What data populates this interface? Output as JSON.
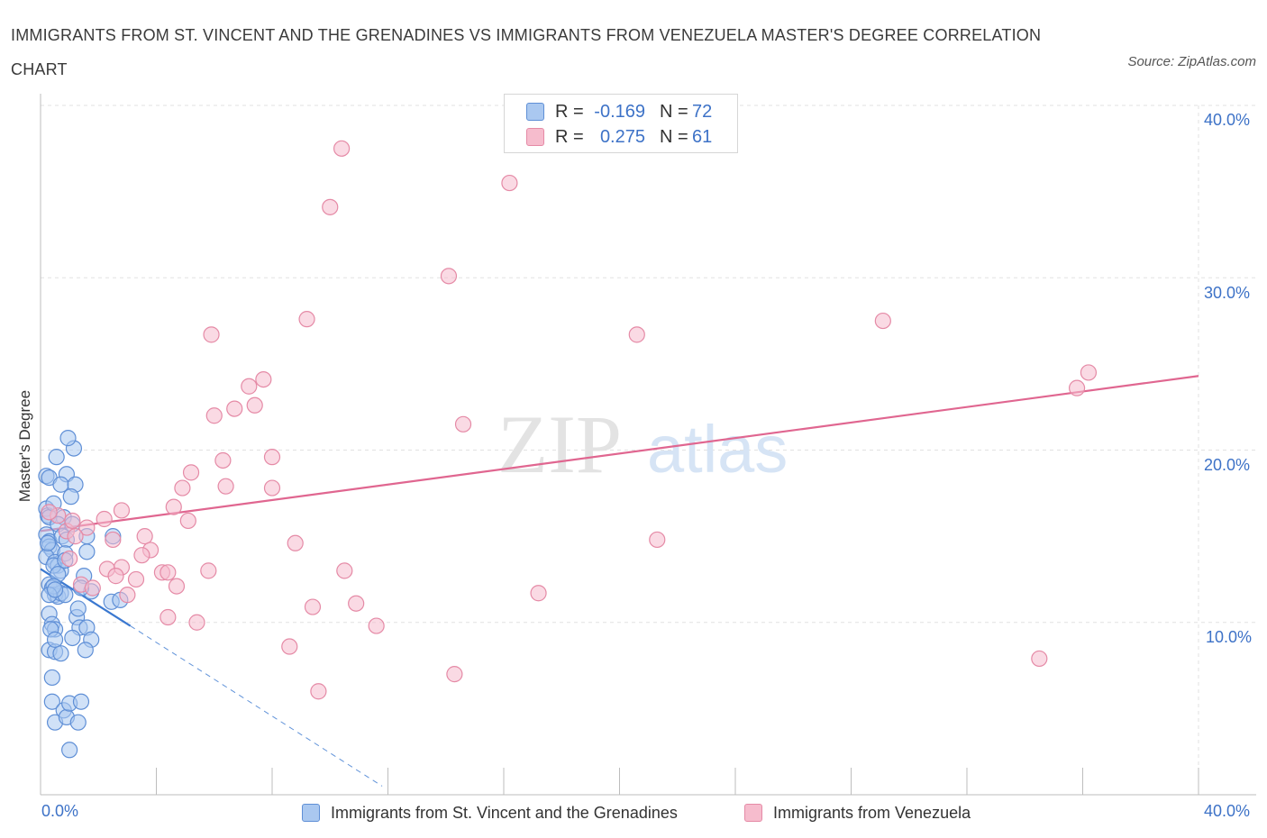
{
  "title": "IMMIGRANTS FROM ST. VINCENT AND THE GRENADINES VS IMMIGRANTS FROM VENEZUELA MASTER'S DEGREE CORRELATION CHART",
  "source": "Source: ZipAtlas.com",
  "watermark": {
    "zip": "ZIP",
    "atlas": "atlas"
  },
  "colors": {
    "blue_fill": "#aac8f0",
    "blue_stroke": "#5f8fd6",
    "blue_line": "#3a78d0",
    "pink_fill": "#f6bccd",
    "pink_stroke": "#e58aa6",
    "pink_line": "#e06690",
    "accent_text": "#3d72c7",
    "grid": "#e2e2e2"
  },
  "legend": {
    "blue": {
      "r_label": "R =",
      "r_value": "-0.169",
      "n_label": "N =",
      "n_value": "72"
    },
    "pink": {
      "r_label": "R =",
      "r_value": "0.275",
      "n_label": "N =",
      "n_value": "61"
    }
  },
  "bottom_legend": {
    "blue": "Immigrants from St. Vincent and the Grenadines",
    "pink": "Immigrants from Venezuela"
  },
  "chart_data": {
    "type": "scatter",
    "ylabel": "Master's Degree",
    "x_tick_labels": {
      "left": "0.0%",
      "right": "40.0%"
    },
    "y_tick_labels": [
      "10.0%",
      "20.0%",
      "30.0%",
      "40.0%"
    ],
    "xlim": [
      0,
      40
    ],
    "ylim": [
      0,
      40
    ],
    "y_ticks": [
      10,
      20,
      30,
      40
    ],
    "grid": true,
    "legend_position": "top-center",
    "series": [
      {
        "name": "Immigrants from St. Vincent and the Grenadines",
        "color": "blue",
        "trend": {
          "x": [
            0,
            3.1
          ],
          "y": [
            13.1,
            9.8
          ],
          "dashed_extension": {
            "x": [
              3.1,
              11.8
            ],
            "y": [
              9.8,
              0.5
            ]
          }
        },
        "points": [
          [
            0.2,
            16.6
          ],
          [
            0.25,
            16.2
          ],
          [
            0.3,
            16.1
          ],
          [
            0.2,
            15.1
          ],
          [
            0.3,
            14.7
          ],
          [
            0.3,
            14.4
          ],
          [
            0.4,
            14.2
          ],
          [
            0.2,
            13.8
          ],
          [
            0.5,
            13.5
          ],
          [
            0.6,
            13.3
          ],
          [
            0.7,
            13.0
          ],
          [
            0.3,
            12.2
          ],
          [
            0.4,
            12.0
          ],
          [
            0.5,
            11.6
          ],
          [
            0.6,
            11.5
          ],
          [
            0.7,
            11.7
          ],
          [
            0.3,
            10.5
          ],
          [
            0.4,
            9.9
          ],
          [
            0.5,
            9.6
          ],
          [
            0.3,
            8.4
          ],
          [
            0.5,
            8.3
          ],
          [
            0.7,
            8.2
          ],
          [
            0.4,
            6.8
          ],
          [
            0.4,
            5.4
          ],
          [
            0.5,
            4.2
          ],
          [
            0.8,
            4.9
          ],
          [
            0.9,
            4.5
          ],
          [
            1.0,
            5.3
          ],
          [
            1.4,
            5.4
          ],
          [
            1.3,
            4.2
          ],
          [
            1.0,
            2.6
          ],
          [
            0.2,
            18.5
          ],
          [
            0.3,
            18.4
          ],
          [
            0.55,
            19.6
          ],
          [
            0.9,
            18.6
          ],
          [
            1.15,
            20.1
          ],
          [
            0.95,
            20.7
          ],
          [
            0.7,
            18.0
          ],
          [
            1.2,
            18.0
          ],
          [
            1.05,
            17.3
          ],
          [
            0.45,
            16.9
          ],
          [
            0.8,
            16.1
          ],
          [
            0.6,
            15.7
          ],
          [
            1.1,
            15.7
          ],
          [
            0.75,
            15.0
          ],
          [
            0.9,
            14.8
          ],
          [
            1.6,
            15.0
          ],
          [
            2.5,
            15.0
          ],
          [
            0.85,
            14.0
          ],
          [
            1.6,
            14.1
          ],
          [
            0.45,
            13.3
          ],
          [
            0.85,
            13.6
          ],
          [
            0.6,
            12.8
          ],
          [
            1.5,
            12.7
          ],
          [
            0.85,
            11.6
          ],
          [
            1.75,
            11.8
          ],
          [
            1.4,
            12.0
          ],
          [
            1.25,
            10.3
          ],
          [
            1.35,
            9.7
          ],
          [
            1.6,
            9.7
          ],
          [
            1.75,
            9.0
          ],
          [
            1.1,
            9.1
          ],
          [
            1.55,
            8.4
          ],
          [
            0.45,
            12.1
          ],
          [
            0.3,
            11.6
          ],
          [
            0.5,
            11.9
          ],
          [
            2.45,
            11.2
          ],
          [
            2.75,
            11.3
          ],
          [
            1.3,
            10.8
          ],
          [
            0.35,
            9.6
          ],
          [
            0.5,
            9.0
          ],
          [
            0.25,
            14.6
          ]
        ]
      },
      {
        "name": "Immigrants from Venezuela",
        "color": "pink",
        "trend": {
          "x": [
            0,
            40
          ],
          "y": [
            15.3,
            24.3
          ]
        },
        "points": [
          [
            10.4,
            37.5
          ],
          [
            16.2,
            35.5
          ],
          [
            10.0,
            34.1
          ],
          [
            14.1,
            30.1
          ],
          [
            9.2,
            27.6
          ],
          [
            5.9,
            26.7
          ],
          [
            20.6,
            26.7
          ],
          [
            29.1,
            27.5
          ],
          [
            36.2,
            24.5
          ],
          [
            35.8,
            23.6
          ],
          [
            7.7,
            24.1
          ],
          [
            7.2,
            23.7
          ],
          [
            7.4,
            22.6
          ],
          [
            6.7,
            22.4
          ],
          [
            6.0,
            22.0
          ],
          [
            14.6,
            21.5
          ],
          [
            6.3,
            19.4
          ],
          [
            8.0,
            19.6
          ],
          [
            5.2,
            18.7
          ],
          [
            6.4,
            17.9
          ],
          [
            8.0,
            17.8
          ],
          [
            4.9,
            17.8
          ],
          [
            4.6,
            16.7
          ],
          [
            2.8,
            16.5
          ],
          [
            0.6,
            16.2
          ],
          [
            2.2,
            16.0
          ],
          [
            5.1,
            15.9
          ],
          [
            1.6,
            15.5
          ],
          [
            0.9,
            15.3
          ],
          [
            3.6,
            15.0
          ],
          [
            1.2,
            15.0
          ],
          [
            2.5,
            14.8
          ],
          [
            8.8,
            14.6
          ],
          [
            21.3,
            14.8
          ],
          [
            3.8,
            14.2
          ],
          [
            3.5,
            13.9
          ],
          [
            1.0,
            13.7
          ],
          [
            2.8,
            13.2
          ],
          [
            2.3,
            13.1
          ],
          [
            5.8,
            13.0
          ],
          [
            10.5,
            13.0
          ],
          [
            4.2,
            12.9
          ],
          [
            4.4,
            12.9
          ],
          [
            2.6,
            12.7
          ],
          [
            3.3,
            12.5
          ],
          [
            1.4,
            12.2
          ],
          [
            4.7,
            12.1
          ],
          [
            1.8,
            12.0
          ],
          [
            3.0,
            11.6
          ],
          [
            17.2,
            11.7
          ],
          [
            10.9,
            11.1
          ],
          [
            9.4,
            10.9
          ],
          [
            4.4,
            10.3
          ],
          [
            5.4,
            10.0
          ],
          [
            11.6,
            9.8
          ],
          [
            8.6,
            8.6
          ],
          [
            34.5,
            7.9
          ],
          [
            14.3,
            7.0
          ],
          [
            9.6,
            6.0
          ],
          [
            0.3,
            16.4
          ],
          [
            1.1,
            15.9
          ]
        ]
      }
    ]
  }
}
